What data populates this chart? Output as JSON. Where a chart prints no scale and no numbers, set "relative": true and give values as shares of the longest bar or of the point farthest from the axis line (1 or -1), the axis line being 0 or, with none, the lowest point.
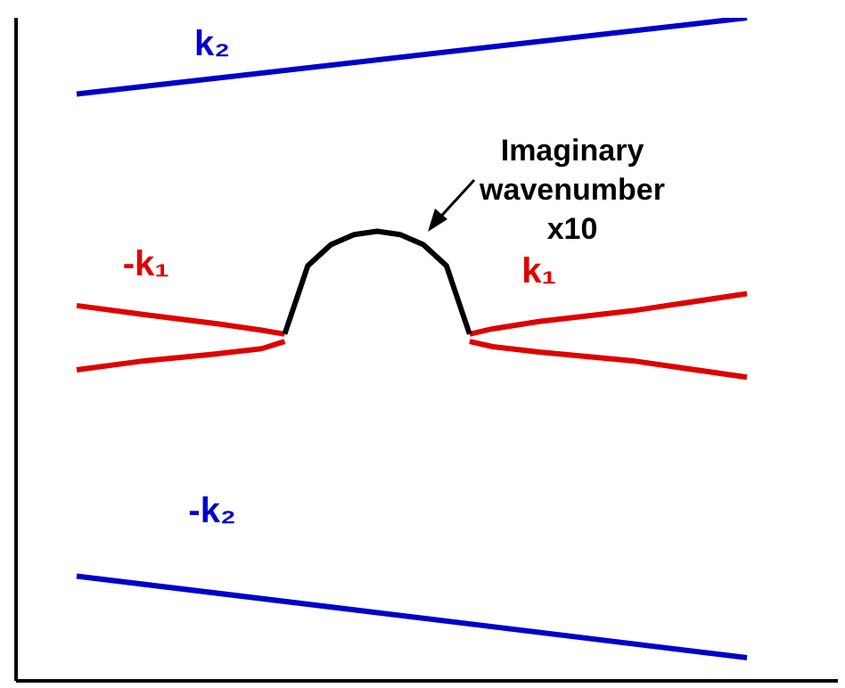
{
  "chart_data": {
    "type": "line",
    "relative": true,
    "marker": "none",
    "line_style": "solid",
    "categories": [
      null,
      null,
      null,
      null,
      null,
      null,
      null,
      null,
      null,
      null,
      null,
      null,
      null,
      null,
      null,
      null,
      null,
      null,
      null,
      null,
      null,
      null,
      null,
      null,
      null,
      null,
      null,
      null,
      null,
      null
    ],
    "series": [
      {
        "name": "k₂",
        "color": "#0000cc",
        "values": [
          0.885,
          null,
          null,
          null,
          null,
          null,
          null,
          null,
          null,
          null,
          null,
          null,
          null,
          null,
          null,
          null,
          null,
          null,
          null,
          null,
          null,
          null,
          null,
          null,
          null,
          null,
          null,
          null,
          null,
          1
        ]
      },
      {
        "name": "-k₂",
        "color": "#0000cc",
        "values": [
          0.158,
          null,
          null,
          null,
          null,
          null,
          null,
          null,
          null,
          null,
          null,
          null,
          null,
          null,
          null,
          null,
          null,
          null,
          null,
          null,
          null,
          null,
          null,
          null,
          null,
          null,
          null,
          null,
          null,
          0.035
        ]
      },
      {
        "name": "-k₁",
        "color": "#e00000",
        "values": [
          0.566,
          null,
          null,
          0.552,
          null,
          null,
          0.539,
          null,
          0.529,
          0.523,
          null,
          null,
          null,
          null,
          null,
          null,
          null,
          null,
          null,
          null,
          null,
          null,
          null,
          null,
          null,
          null,
          null,
          null,
          null,
          null
        ]
      },
      {
        "color": "#e00000",
        "values": [
          0.469,
          null,
          null,
          0.483,
          null,
          null,
          0.493,
          null,
          0.501,
          0.512,
          null,
          null,
          null,
          null,
          null,
          null,
          null,
          null,
          null,
          null,
          null,
          null,
          null,
          null,
          null,
          null,
          null,
          null,
          null,
          null
        ]
      },
      {
        "name": "k₁",
        "color": "#e00000",
        "values": [
          null,
          null,
          null,
          null,
          null,
          null,
          null,
          null,
          null,
          null,
          null,
          null,
          null,
          null,
          null,
          null,
          null,
          0.523,
          0.531,
          null,
          0.542,
          null,
          null,
          null,
          0.558,
          null,
          null,
          null,
          null,
          0.584
        ]
      },
      {
        "color": "#e00000",
        "values": [
          null,
          null,
          null,
          null,
          null,
          null,
          null,
          null,
          null,
          null,
          null,
          null,
          null,
          null,
          null,
          null,
          null,
          0.512,
          0.504,
          null,
          0.496,
          null,
          null,
          null,
          0.483,
          null,
          null,
          null,
          null,
          0.458
        ]
      },
      {
        "color": "#000000",
        "values": [
          null,
          null,
          null,
          null,
          null,
          null,
          null,
          null,
          null,
          0.523,
          0.626,
          0.658,
          0.673,
          0.678,
          0.673,
          0.658,
          0.626,
          0.523,
          null,
          null,
          null,
          null,
          null,
          null,
          null,
          null,
          null,
          null,
          null,
          null
        ]
      }
    ],
    "annotations": [
      "Imaginary wavenumber x10"
    ]
  }
}
